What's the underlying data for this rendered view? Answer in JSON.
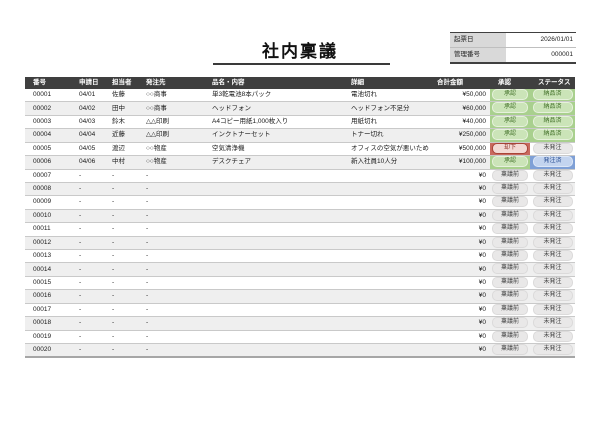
{
  "title": "社内稟議",
  "meta": {
    "rows": [
      {
        "label": "起票日",
        "value": "2026/01/01"
      },
      {
        "label": "管理番号",
        "value": "000001"
      }
    ]
  },
  "table": {
    "headers": [
      "番号",
      "申請日",
      "担当者",
      "発注先",
      "品名・内容",
      "詳細",
      "合計金額",
      "承認",
      "ステータス"
    ],
    "rows": [
      {
        "no": "00001",
        "date": "04/01",
        "person": "佐藤",
        "vendor": "○○商事",
        "item": "単3乾電池8本パック",
        "detail": "電池切れ",
        "amount": "¥50,000",
        "approval": {
          "label": "承認",
          "variant": "green"
        },
        "status": {
          "label": "納品済",
          "variant": "green"
        }
      },
      {
        "no": "00002",
        "date": "04/02",
        "person": "田中",
        "vendor": "○○商事",
        "item": "ヘッドフォン",
        "detail": "ヘッドフォン不足分",
        "amount": "¥60,000",
        "approval": {
          "label": "承認",
          "variant": "green"
        },
        "status": {
          "label": "納品済",
          "variant": "green"
        }
      },
      {
        "no": "00003",
        "date": "04/03",
        "person": "鈴木",
        "vendor": "△△印刷",
        "item": "A4コピー用紙1,000枚入り",
        "detail": "用紙切れ",
        "amount": "¥40,000",
        "approval": {
          "label": "承認",
          "variant": "green"
        },
        "status": {
          "label": "納品済",
          "variant": "green"
        }
      },
      {
        "no": "00004",
        "date": "04/04",
        "person": "近藤",
        "vendor": "△△印刷",
        "item": "インクトナーセット",
        "detail": "トナー切れ",
        "amount": "¥250,000",
        "approval": {
          "label": "承認",
          "variant": "green"
        },
        "status": {
          "label": "納品済",
          "variant": "green"
        }
      },
      {
        "no": "00005",
        "date": "04/05",
        "person": "渡辺",
        "vendor": "○○物産",
        "item": "空気清浄機",
        "detail": "オフィスの空気が悪いため",
        "amount": "¥500,000",
        "approval": {
          "label": "却下",
          "variant": "red"
        },
        "status": {
          "label": "未発注",
          "variant": "gray"
        }
      },
      {
        "no": "00006",
        "date": "04/06",
        "person": "中村",
        "vendor": "○○物産",
        "item": "デスクチェア",
        "detail": "新入社員10人分",
        "amount": "¥100,000",
        "approval": {
          "label": "承認",
          "variant": "green"
        },
        "status": {
          "label": "発注済",
          "variant": "blue"
        }
      },
      {
        "no": "00007",
        "date": "-",
        "person": "-",
        "vendor": "-",
        "item": "",
        "detail": "",
        "amount": "¥0",
        "approval": {
          "label": "稟議前",
          "variant": "gray"
        },
        "status": {
          "label": "未発注",
          "variant": "gray"
        }
      },
      {
        "no": "00008",
        "date": "-",
        "person": "-",
        "vendor": "-",
        "item": "",
        "detail": "",
        "amount": "¥0",
        "approval": {
          "label": "稟議前",
          "variant": "gray"
        },
        "status": {
          "label": "未発注",
          "variant": "gray"
        }
      },
      {
        "no": "00009",
        "date": "-",
        "person": "-",
        "vendor": "-",
        "item": "",
        "detail": "",
        "amount": "¥0",
        "approval": {
          "label": "稟議前",
          "variant": "gray"
        },
        "status": {
          "label": "未発注",
          "variant": "gray"
        }
      },
      {
        "no": "00010",
        "date": "-",
        "person": "-",
        "vendor": "-",
        "item": "",
        "detail": "",
        "amount": "¥0",
        "approval": {
          "label": "稟議前",
          "variant": "gray"
        },
        "status": {
          "label": "未発注",
          "variant": "gray"
        }
      },
      {
        "no": "00011",
        "date": "-",
        "person": "-",
        "vendor": "-",
        "item": "",
        "detail": "",
        "amount": "¥0",
        "approval": {
          "label": "稟議前",
          "variant": "gray"
        },
        "status": {
          "label": "未発注",
          "variant": "gray"
        }
      },
      {
        "no": "00012",
        "date": "-",
        "person": "-",
        "vendor": "-",
        "item": "",
        "detail": "",
        "amount": "¥0",
        "approval": {
          "label": "稟議前",
          "variant": "gray"
        },
        "status": {
          "label": "未発注",
          "variant": "gray"
        }
      },
      {
        "no": "00013",
        "date": "-",
        "person": "-",
        "vendor": "-",
        "item": "",
        "detail": "",
        "amount": "¥0",
        "approval": {
          "label": "稟議前",
          "variant": "gray"
        },
        "status": {
          "label": "未発注",
          "variant": "gray"
        }
      },
      {
        "no": "00014",
        "date": "-",
        "person": "-",
        "vendor": "-",
        "item": "",
        "detail": "",
        "amount": "¥0",
        "approval": {
          "label": "稟議前",
          "variant": "gray"
        },
        "status": {
          "label": "未発注",
          "variant": "gray"
        }
      },
      {
        "no": "00015",
        "date": "-",
        "person": "-",
        "vendor": "-",
        "item": "",
        "detail": "",
        "amount": "¥0",
        "approval": {
          "label": "稟議前",
          "variant": "gray"
        },
        "status": {
          "label": "未発注",
          "variant": "gray"
        }
      },
      {
        "no": "00016",
        "date": "-",
        "person": "-",
        "vendor": "-",
        "item": "",
        "detail": "",
        "amount": "¥0",
        "approval": {
          "label": "稟議前",
          "variant": "gray"
        },
        "status": {
          "label": "未発注",
          "variant": "gray"
        }
      },
      {
        "no": "00017",
        "date": "-",
        "person": "-",
        "vendor": "-",
        "item": "",
        "detail": "",
        "amount": "¥0",
        "approval": {
          "label": "稟議前",
          "variant": "gray"
        },
        "status": {
          "label": "未発注",
          "variant": "gray"
        }
      },
      {
        "no": "00018",
        "date": "-",
        "person": "-",
        "vendor": "-",
        "item": "",
        "detail": "",
        "amount": "¥0",
        "approval": {
          "label": "稟議前",
          "variant": "gray"
        },
        "status": {
          "label": "未発注",
          "variant": "gray"
        }
      },
      {
        "no": "00019",
        "date": "-",
        "person": "-",
        "vendor": "-",
        "item": "",
        "detail": "",
        "amount": "¥0",
        "approval": {
          "label": "稟議前",
          "variant": "gray"
        },
        "status": {
          "label": "未発注",
          "variant": "gray"
        }
      },
      {
        "no": "00020",
        "date": "-",
        "person": "-",
        "vendor": "-",
        "item": "",
        "detail": "",
        "amount": "¥0",
        "approval": {
          "label": "稟議前",
          "variant": "gray"
        },
        "status": {
          "label": "未発注",
          "variant": "gray"
        }
      }
    ]
  },
  "palette": {
    "header_bg": "#3f3f3f",
    "band_row_bg": "#efefef",
    "approved_cell": "#a9d08e",
    "approved_pill": "#cbe4b8",
    "approved_text": "#3f6e26",
    "rejected_cell": "#c86a5e",
    "rejected_pill": "#f3d9d4",
    "rejected_text": "#8e2f24",
    "ordered_cell": "#7fa0d6",
    "ordered_pill": "#c3d4ef",
    "ordered_text": "#2b4f93",
    "neutral_pill": "#e9e8e8",
    "meta_label_bg": "#d9d9d9"
  }
}
